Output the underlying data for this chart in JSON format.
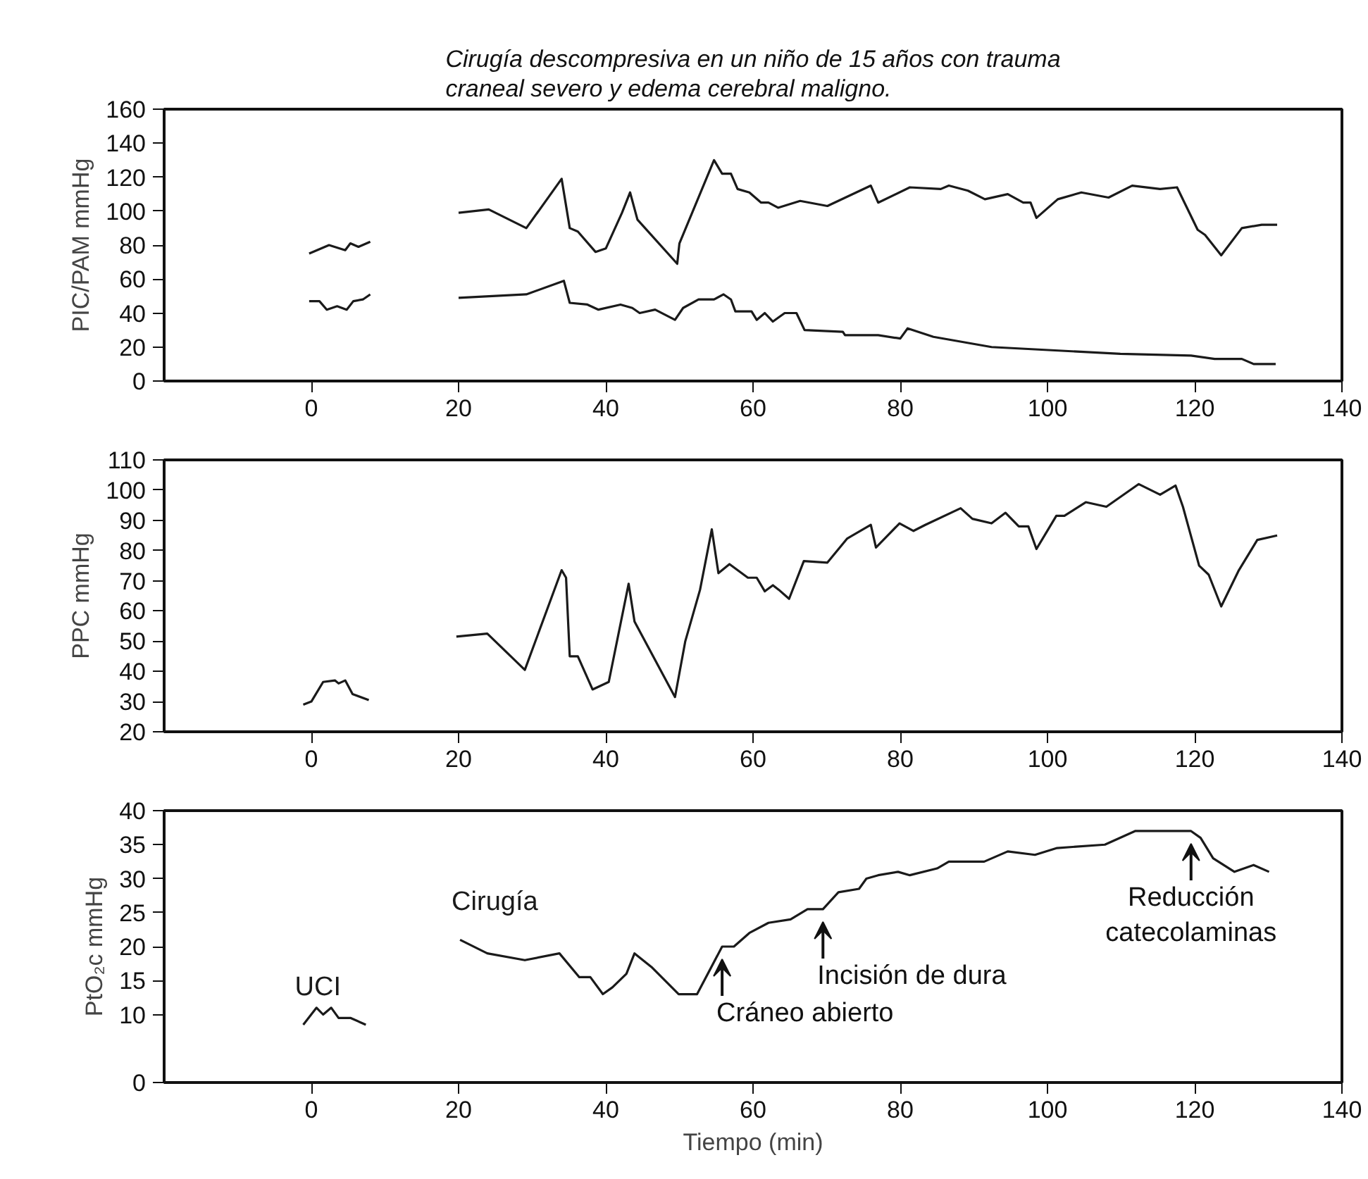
{
  "chart_data": [
    {
      "type": "line",
      "title": "Cirugía descompresiva en un niño de 15 años con trauma\ncraneal severo y edema cerebral maligno.",
      "ylabel": "PIC/PAM mmHg",
      "xlim": [
        -20,
        140
      ],
      "xticks": [
        0,
        20,
        40,
        60,
        80,
        100,
        120,
        140
      ],
      "ylim": [
        0,
        160
      ],
      "yticks": [
        0,
        20,
        40,
        60,
        80,
        100,
        120,
        140,
        160
      ],
      "grid": false,
      "marker": "none",
      "line_style": "solid",
      "series": [
        {
          "color": "#1a1a1a",
          "x": [
            -0.3,
            2.4,
            4.6,
            5.3,
            6.4,
            8,
            14,
            20,
            24.1,
            29.2,
            34,
            35.1,
            36.2,
            38.6,
            40,
            42.2,
            43.3,
            44.3,
            49.7,
            50,
            54.7,
            55.8,
            57,
            57.9,
            59.5,
            61.1,
            62.1,
            63.4,
            66.4,
            70.1,
            76,
            77,
            81.3,
            85.5,
            86.6,
            89.2,
            91.5,
            94.6,
            96.7,
            97.7,
            98.5,
            101.4,
            104.6,
            108.3,
            111.5,
            115.3,
            117.6,
            120.4,
            121.4,
            123.6,
            126.4,
            129.1,
            131.2
          ],
          "values": [
            75,
            80,
            77,
            81,
            79,
            82,
            null,
            99,
            101,
            90,
            119,
            90,
            88,
            76,
            78,
            99,
            111,
            95,
            69,
            81,
            130,
            122,
            122,
            113,
            111,
            105,
            105,
            102,
            106,
            103,
            115,
            105,
            114,
            113,
            115,
            112,
            107,
            110,
            105,
            105,
            96,
            107,
            111,
            108,
            115,
            113,
            114,
            89,
            86,
            74,
            90,
            92,
            92
          ]
        },
        {
          "color": "#1a1a1a",
          "x": [
            -0.3,
            1.1,
            2.1,
            3.5,
            4.8,
            5.7,
            7,
            8,
            14,
            20,
            29.2,
            34.3,
            35.1,
            37.5,
            39,
            42,
            43.6,
            44.6,
            46.7,
            49.4,
            50.5,
            52.6,
            54.7,
            56,
            57,
            57.6,
            59.8,
            60.5,
            61.6,
            62.7,
            64.3,
            65.9,
            67,
            72.2,
            72.5,
            77,
            80,
            81,
            84.5,
            92.4,
            109.9,
            119.5,
            122.7,
            126.4,
            128,
            131
          ],
          "values": [
            47,
            47,
            42,
            44,
            42,
            47,
            48,
            51,
            null,
            49,
            51,
            59,
            46,
            45,
            42,
            45,
            43,
            40,
            42,
            36,
            43,
            48,
            48,
            51,
            48,
            41,
            41,
            36,
            40,
            35,
            40,
            40,
            30,
            29,
            27,
            27,
            25,
            31,
            26,
            20,
            16,
            15,
            13,
            13,
            10,
            10
          ]
        }
      ]
    },
    {
      "type": "line",
      "ylabel": "PPC mmHg",
      "xlim": [
        -20,
        140
      ],
      "xticks": [
        0,
        20,
        40,
        60,
        80,
        100,
        120,
        140
      ],
      "ylim": [
        20,
        110
      ],
      "yticks": [
        20,
        30,
        40,
        50,
        60,
        70,
        80,
        90,
        100,
        110
      ],
      "grid": false,
      "marker": "none",
      "line_style": "solid",
      "series": [
        {
          "color": "#1a1a1a",
          "x": [
            -1.1,
            0,
            1.6,
            3.2,
            3.7,
            4.6,
            5.6,
            7.8,
            14,
            19.7,
            23.9,
            29,
            34,
            34.6,
            35.1,
            36.2,
            38.2,
            40.4,
            43.1,
            43.9,
            49.4,
            50.8,
            52.8,
            54.4,
            55.3,
            56.8,
            59.3,
            60.5,
            61.6,
            62.7,
            63.5,
            64.9,
            66.9,
            70.1,
            72.8,
            76,
            76.7,
            79.9,
            81.8,
            83.4,
            88.2,
            89.8,
            92.4,
            94.3,
            96.1,
            97.4,
            98.5,
            101.2,
            102.3,
            105.2,
            108,
            112.4,
            115.3,
            117.4,
            118.4,
            120.6,
            121.9,
            123.6,
            126,
            128.5,
            131.2
          ],
          "values": [
            29,
            30,
            36.5,
            37,
            36,
            37,
            32.5,
            30.5,
            null,
            51.5,
            52.5,
            40.5,
            73.5,
            71,
            45,
            45,
            34,
            36.5,
            69,
            56.5,
            31.5,
            50,
            67,
            87,
            72.5,
            75.5,
            71,
            71,
            66.5,
            68.5,
            67,
            64,
            76.5,
            76,
            84,
            88.5,
            81,
            89,
            86.5,
            88.5,
            94,
            90.5,
            89,
            92.5,
            88,
            88,
            80.5,
            91.5,
            91.5,
            96,
            94.5,
            102,
            98.5,
            101.5,
            94.5,
            75,
            72,
            61.5,
            73.5,
            83.5,
            85
          ]
        }
      ]
    },
    {
      "type": "line",
      "ylabel": "PtO₂c mmHg",
      "xlabel": "Tiempo (min)",
      "xlim": [
        -20,
        140
      ],
      "xticks": [
        0,
        20,
        40,
        60,
        80,
        100,
        120,
        140
      ],
      "ylim": [
        0,
        40
      ],
      "yticks": [
        0,
        10,
        15,
        20,
        25,
        30,
        35,
        40
      ],
      "grid": false,
      "marker": "none",
      "line_style": "solid",
      "series": [
        {
          "name": "UCI",
          "color": "#1a1a1a",
          "x": [
            -1.1,
            0.7,
            1.6,
            2.7,
            3.7,
            5.3,
            7.4
          ],
          "values": [
            8.5,
            11,
            10,
            11,
            9.5,
            9.5,
            8.5
          ]
        },
        {
          "name": "Cirugía",
          "color": "#1a1a1a",
          "x": [
            20.2,
            23.9,
            29,
            33.7,
            36.4,
            37.9,
            39.6,
            40.9,
            42.8,
            43.9,
            46.2,
            49.9,
            52.4,
            55.8,
            57.4,
            59.5,
            62.1,
            65.1,
            67.4,
            69.5,
            71.6,
            74.4,
            75.4,
            77,
            79.7,
            81.3,
            85,
            86.6,
            88.2,
            91.4,
            94.6,
            98.3,
            101.3,
            107.8,
            111.9,
            113.7,
            119.5,
            120.8,
            122.5,
            125.4,
            128,
            130.1
          ],
          "values": [
            21,
            19,
            18,
            19,
            15.5,
            15.5,
            13,
            14,
            16,
            19,
            17,
            13,
            13,
            20,
            20,
            22,
            23.5,
            24,
            25.5,
            25.5,
            28,
            28.5,
            30,
            30.5,
            31,
            30.5,
            31.5,
            32.5,
            32.5,
            32.5,
            34,
            33.5,
            34.5,
            35,
            37,
            37,
            37,
            36,
            33,
            31,
            32,
            31
          ]
        }
      ],
      "annotations": [
        {
          "text": "Cráneo abierto",
          "x": 55.8,
          "y": 20
        },
        {
          "text": "Incisión de dura",
          "x": 69.5,
          "y": 25.5
        },
        {
          "text": "Reducción\ncatecolaminas",
          "x": 119.5,
          "y": 37
        }
      ]
    }
  ]
}
